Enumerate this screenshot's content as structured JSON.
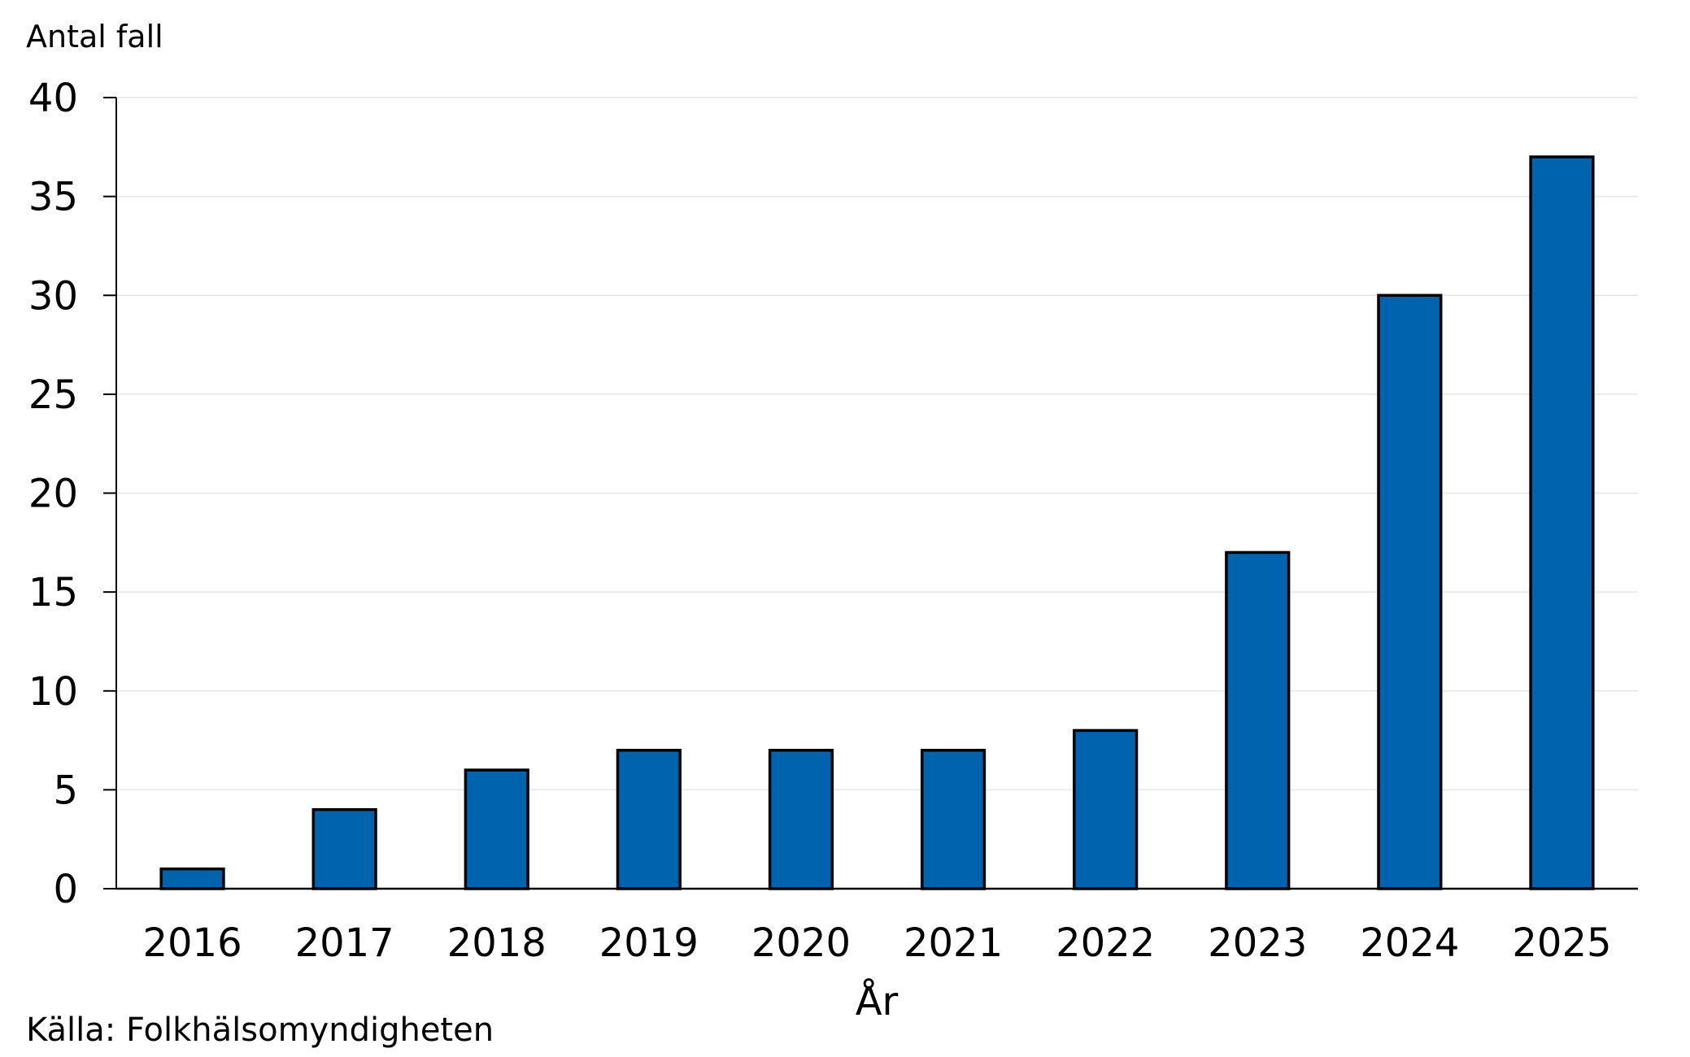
{
  "chart_data": {
    "type": "bar",
    "categories": [
      "2016",
      "2017",
      "2018",
      "2019",
      "2020",
      "2021",
      "2022",
      "2023",
      "2024",
      "2025"
    ],
    "values": [
      1,
      4,
      6,
      7,
      7,
      7,
      8,
      17,
      30,
      37
    ],
    "title": "",
    "xlabel": "År",
    "ylabel": "Antal fall",
    "ylim": [
      0,
      40
    ],
    "yticks": [
      0,
      5,
      10,
      15,
      20,
      25,
      30,
      35,
      40
    ],
    "grid": true,
    "legend": "none",
    "colors": {
      "bar": "#0063AD",
      "bar_outline": "#000000",
      "grid": "#E6E6E6",
      "axis": "#000000"
    }
  },
  "source": "Källa: Folkhälsomyndigheten"
}
